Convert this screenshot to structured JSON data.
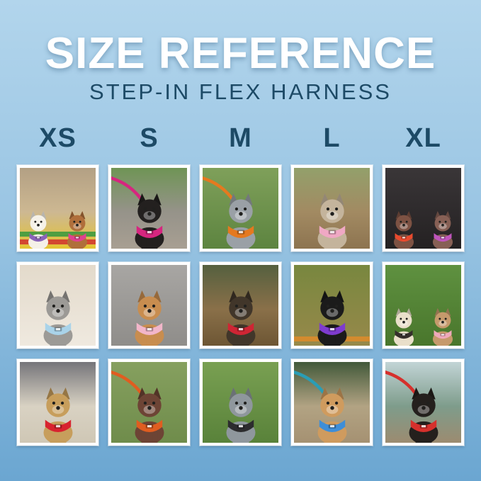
{
  "theme": {
    "background_top": "#b2d5ec",
    "background_mid": "#9ac5e3",
    "background_bottom": "#6ba6d1",
    "title_color": "#ffffff",
    "heading_color": "#1d4a66",
    "photo_frame_color": "#ffffff"
  },
  "header": {
    "title": "SIZE REFERENCE",
    "subtitle": "STEP-IN FLEX HARNESS"
  },
  "sizes": [
    {
      "label": "XS"
    },
    {
      "label": "S"
    },
    {
      "label": "M"
    },
    {
      "label": "L"
    },
    {
      "label": "XL"
    }
  ],
  "grid": {
    "rows": 3,
    "columns": 5,
    "photos": [
      {
        "row": 1,
        "size": "XS",
        "description": "White bichon frise in a purple harness and apricot mini poodle in a hot-pink harness on a colorful picnic blanket",
        "scene": [
          "#b3a084",
          "#cdb892",
          "#e4c431"
        ],
        "accents": [
          "#d23b2f",
          "#3f9a3f"
        ],
        "dogs": [
          {
            "fur": "#f5f1e8",
            "harness": "#8a63b8",
            "harness_name": "purple"
          },
          {
            "fur": "#b06f3b",
            "harness": "#e0418f",
            "harness_name": "hot pink"
          }
        ]
      },
      {
        "row": 1,
        "size": "S",
        "description": "Black miniature pinscher mix in a magenta harness standing on a rock with a pink leash",
        "scene": [
          "#6f9455",
          "#96938a",
          "#a89f92"
        ],
        "leash_color": "#d6267f",
        "dogs": [
          {
            "fur": "#23201f",
            "harness": "#d6267f",
            "harness_name": "magenta"
          }
        ]
      },
      {
        "row": 1,
        "size": "M",
        "description": "Blue merle puppy in an orange harness on green grass",
        "scene": [
          "#7fa05a",
          "#5d8440"
        ],
        "leash_color": "#e5791f",
        "dogs": [
          {
            "fur": "#9aa0a6",
            "harness": "#e5791f",
            "harness_name": "orange"
          }
        ]
      },
      {
        "row": 1,
        "size": "L",
        "description": "Fawn brindle whippet in a light-pink harness sitting in a park",
        "scene": [
          "#93a06b",
          "#a28a62",
          "#8d7450"
        ],
        "dogs": [
          {
            "fur": "#c4b49c",
            "harness": "#f0a8c4",
            "harness_name": "light pink"
          }
        ]
      },
      {
        "row": 1,
        "size": "XL",
        "description": "Two liver-ticked German shorthaired pointers in a car, one in a red-orange harness and one in an orchid-purple harness",
        "scene": [
          "#3a3638",
          "#242122"
        ],
        "dogs": [
          {
            "fur": "#7d5243",
            "harness": "#e84a2e",
            "harness_name": "red-orange"
          },
          {
            "fur": "#876055",
            "harness": "#bf55bd",
            "harness_name": "orchid purple"
          }
        ]
      },
      {
        "row": 2,
        "size": "XS",
        "description": "Grey and white shih tzu in a light-blue harness lying on a cream bed",
        "scene": [
          "#e3dacb",
          "#efe9df"
        ],
        "dogs": [
          {
            "fur": "#9c9a96",
            "harness": "#a9d3e9",
            "harness_name": "light blue"
          }
        ]
      },
      {
        "row": 2,
        "size": "S",
        "description": "Golden retriever puppy in a light-pink harness sitting on asphalt",
        "scene": [
          "#a8a6a3",
          "#8f8d8a"
        ],
        "dogs": [
          {
            "fur": "#c88d4f",
            "harness": "#f2b6ca",
            "harness_name": "light pink"
          }
        ]
      },
      {
        "row": 2,
        "size": "M",
        "description": "Black and tan terrier mix in a red harness sitting on a wooden park bench",
        "scene": [
          "#55603f",
          "#8a7049",
          "#6d5634"
        ],
        "dogs": [
          {
            "fur": "#41362a",
            "harness": "#cf2534",
            "harness_name": "red"
          }
        ]
      },
      {
        "row": 2,
        "size": "L",
        "description": "Black labrador puppy in a purple harness standing in grass with autumn leaves",
        "scene": [
          "#78873f",
          "#97894a"
        ],
        "accents": [
          "#d98c2b"
        ],
        "dogs": [
          {
            "fur": "#1b1b1b",
            "harness": "#7e3bcf",
            "harness_name": "purple"
          }
        ]
      },
      {
        "row": 2,
        "size": "XL",
        "description": "Cream doodle in a dark-brown harness and fawn french bulldog in a pink harness on bright green grass",
        "scene": [
          "#5f9140",
          "#49762c"
        ],
        "dogs": [
          {
            "fur": "#e9dfca",
            "harness": "#352f2c",
            "harness_name": "dark brown"
          },
          {
            "fur": "#c69a6c",
            "harness": "#efa9ba",
            "harness_name": "pink"
          }
        ]
      },
      {
        "row": 3,
        "size": "XS",
        "description": "Tan yorkie mix in a red harness sitting on a shaggy cream rug by a grey couch",
        "scene": [
          "#75757a",
          "#d9d2c3",
          "#cfc7b5"
        ],
        "dogs": [
          {
            "fur": "#c79e5c",
            "harness": "#d8232f",
            "harness_name": "red"
          }
        ]
      },
      {
        "row": 3,
        "size": "S",
        "description": "Liver German shorthaired pointer puppy in an orange harness lying in grass with an orange leash",
        "scene": [
          "#86a05f",
          "#6f8c4b"
        ],
        "leash_color": "#e05d20",
        "dogs": [
          {
            "fur": "#6d4435",
            "harness": "#e05d20",
            "harness_name": "orange"
          }
        ]
      },
      {
        "row": 3,
        "size": "M",
        "description": "Blue merle border collie in a black harness standing on green grass",
        "scene": [
          "#79a052",
          "#59823a"
        ],
        "dogs": [
          {
            "fur": "#8f979d",
            "harness": "#2c2c2e",
            "harness_name": "black"
          }
        ]
      },
      {
        "row": 3,
        "size": "L",
        "description": "Apricot goldendoodle in a blue harness sitting on a stone wall with a teal leash",
        "scene": [
          "#42593a",
          "#b2a383",
          "#a59172"
        ],
        "leash_color": "#2a9db5",
        "dogs": [
          {
            "fur": "#cf9b5e",
            "harness": "#3e8ed8",
            "harness_name": "blue"
          }
        ]
      },
      {
        "row": 3,
        "size": "XL",
        "description": "Black and tan miniature pinscher in a red harness on a mountain overlook with a red leash",
        "scene": [
          "#c2d4d6",
          "#7e9c8b",
          "#9c8b70"
        ],
        "leash_color": "#d6302c",
        "dogs": [
          {
            "fur": "#24201d",
            "harness": "#d6302c",
            "harness_name": "red"
          }
        ]
      }
    ]
  }
}
